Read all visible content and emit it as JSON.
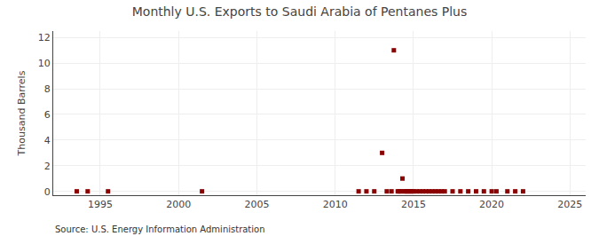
{
  "chart_data": {
    "type": "scatter",
    "title": "Monthly U.S. Exports to Saudi Arabia of Pentanes Plus",
    "ylabel": "Thousand Barrels",
    "annotation": "Source: U.S. Energy Information Administration",
    "x": [
      1993.5,
      1994.2,
      1995.5,
      2001.5,
      2011.5,
      2012.0,
      2012.5,
      2013.0,
      2013.3,
      2013.6,
      2013.75,
      2014.0,
      2014.1,
      2014.2,
      2014.3,
      2014.4,
      2014.5,
      2014.6,
      2014.7,
      2014.8,
      2014.9,
      2015.0,
      2015.2,
      2015.4,
      2015.6,
      2015.8,
      2016.0,
      2016.2,
      2016.4,
      2016.6,
      2016.8,
      2017.0,
      2017.5,
      2018.0,
      2018.5,
      2019.0,
      2019.5,
      2020.0,
      2020.3,
      2021.0,
      2021.5,
      2022.0
    ],
    "values": [
      0,
      0,
      0,
      0,
      0,
      0,
      0,
      3,
      0,
      0,
      11,
      0,
      0,
      0,
      1,
      0,
      0,
      0,
      0,
      0,
      0,
      0,
      0,
      0,
      0,
      0,
      0,
      0,
      0,
      0,
      0,
      0,
      0,
      0,
      0,
      0,
      0,
      0,
      0,
      0,
      0,
      0
    ],
    "color": "#8b0000",
    "marker": "square",
    "xlim": [
      1992,
      2026
    ],
    "ylim": [
      -0.3,
      12.5
    ],
    "xticks": [
      1995,
      2000,
      2005,
      2010,
      2015,
      2020,
      2025
    ],
    "yticks": [
      0,
      2,
      4,
      6,
      8,
      10,
      12
    ],
    "grid": true
  }
}
